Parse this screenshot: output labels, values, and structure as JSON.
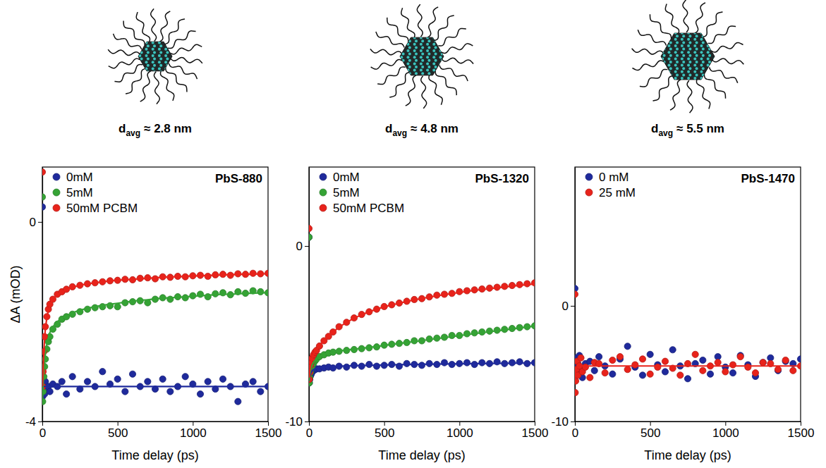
{
  "chart_data": [
    {
      "type": "scatter",
      "title": "PbS-880",
      "particle": {
        "symbol": "d",
        "subscript": "avg",
        "text": "≈ 2.8 nm"
      },
      "x_label": "Time delay (ps)",
      "y_label": "ΔA (mOD)",
      "xlim": [
        0,
        1500
      ],
      "xticks": [
        0,
        500,
        1000,
        1500
      ],
      "ylim": [
        -4,
        1.1
      ],
      "yticks": [
        -4,
        0
      ],
      "legend": "upper left",
      "marker": "circle",
      "line_style": "solid",
      "x": [
        0,
        2,
        5,
        10,
        15,
        20,
        30,
        40,
        50,
        70,
        100,
        130,
        160,
        200,
        250,
        300,
        350,
        400,
        450,
        500,
        550,
        600,
        650,
        700,
        750,
        800,
        850,
        900,
        950,
        1000,
        1050,
        1100,
        1150,
        1200,
        1250,
        1300,
        1350,
        1400,
        1450,
        1500
      ],
      "series": [
        {
          "name": "0mM",
          "color": "#1f2a9c",
          "values": [
            0.3,
            -3.5,
            -3.4,
            -3.3,
            -3.45,
            -3.2,
            -3.35,
            -3.3,
            -3.4,
            -3.25,
            -3.3,
            -3.2,
            -3.45,
            -3.1,
            -3.35,
            -3.2,
            -3.3,
            -3.0,
            -3.25,
            -3.15,
            -3.4,
            -3.05,
            -3.3,
            -3.2,
            -3.35,
            -3.15,
            -3.4,
            -3.3,
            -3.1,
            -3.25,
            -3.45,
            -3.2,
            -3.35,
            -3.15,
            -3.3,
            -3.6,
            -3.25,
            -3.2,
            -3.4,
            -3.3
          ],
          "fit": [
            -3.3,
            -3.3,
            -3.3,
            -3.3,
            -3.3,
            -3.3,
            -3.3,
            -3.3,
            -3.3,
            -3.3,
            -3.3,
            -3.3,
            -3.3,
            -3.3,
            -3.3,
            -3.3,
            -3.3,
            -3.3,
            -3.3,
            -3.3,
            -3.3,
            -3.3,
            -3.3,
            -3.3,
            -3.3,
            -3.3,
            -3.3,
            -3.3,
            -3.3,
            -3.3,
            -3.3,
            -3.3,
            -3.3,
            -3.3,
            -3.3,
            -3.3,
            -3.3,
            -3.3,
            -3.3,
            -3.3
          ]
        },
        {
          "name": "5mM",
          "color": "#35a335",
          "values": [
            0.5,
            -3.6,
            -3.4,
            -3.1,
            -2.9,
            -2.75,
            -2.55,
            -2.4,
            -2.3,
            -2.15,
            -2.05,
            -1.95,
            -1.9,
            -1.85,
            -1.8,
            -1.75,
            -1.72,
            -1.7,
            -1.68,
            -1.7,
            -1.62,
            -1.6,
            -1.58,
            -1.62,
            -1.55,
            -1.52,
            -1.55,
            -1.5,
            -1.52,
            -1.48,
            -1.45,
            -1.5,
            -1.44,
            -1.42,
            -1.46,
            -1.4,
            -1.43,
            -1.38,
            -1.4,
            -1.42
          ],
          "fit": [
            -3.6,
            -3.5,
            -3.3,
            -3.0,
            -2.8,
            -2.65,
            -2.45,
            -2.32,
            -2.22,
            -2.1,
            -2.0,
            -1.93,
            -1.88,
            -1.82,
            -1.77,
            -1.73,
            -1.7,
            -1.67,
            -1.65,
            -1.63,
            -1.61,
            -1.59,
            -1.57,
            -1.56,
            -1.54,
            -1.53,
            -1.52,
            -1.51,
            -1.5,
            -1.49,
            -1.48,
            -1.47,
            -1.46,
            -1.45,
            -1.45,
            -1.44,
            -1.43,
            -1.43,
            -1.42,
            -1.42
          ]
        },
        {
          "name": "50mM PCBM",
          "color": "#e8231b",
          "values": [
            1.0,
            -3.3,
            -3.0,
            -2.6,
            -2.3,
            -2.1,
            -1.9,
            -1.75,
            -1.65,
            -1.55,
            -1.45,
            -1.4,
            -1.35,
            -1.3,
            -1.27,
            -1.24,
            -1.22,
            -1.2,
            -1.18,
            -1.17,
            -1.15,
            -1.16,
            -1.13,
            -1.12,
            -1.14,
            -1.1,
            -1.11,
            -1.09,
            -1.1,
            -1.08,
            -1.07,
            -1.09,
            -1.06,
            -1.05,
            -1.07,
            -1.04,
            -1.05,
            -1.03,
            -1.04,
            -1.03
          ],
          "fit": [
            -3.3,
            -3.2,
            -2.95,
            -2.6,
            -2.35,
            -2.15,
            -1.92,
            -1.78,
            -1.67,
            -1.55,
            -1.46,
            -1.4,
            -1.36,
            -1.31,
            -1.27,
            -1.24,
            -1.22,
            -1.2,
            -1.18,
            -1.17,
            -1.16,
            -1.15,
            -1.14,
            -1.13,
            -1.12,
            -1.11,
            -1.1,
            -1.1,
            -1.09,
            -1.08,
            -1.08,
            -1.07,
            -1.07,
            -1.06,
            -1.06,
            -1.05,
            -1.05,
            -1.05,
            -1.04,
            -1.04
          ]
        }
      ]
    },
    {
      "type": "scatter",
      "title": "PbS-1320",
      "particle": {
        "symbol": "d",
        "subscript": "avg",
        "text": "≈ 4.8 nm"
      },
      "x_label": "Time delay (ps)",
      "xlim": [
        0,
        1500
      ],
      "xticks": [
        0,
        500,
        1000,
        1500
      ],
      "ylim": [
        -10,
        4.5
      ],
      "yticks": [
        -10,
        0
      ],
      "legend": "upper left",
      "marker": "circle",
      "line_style": "solid",
      "x": [
        0,
        2,
        5,
        10,
        15,
        20,
        30,
        40,
        50,
        70,
        100,
        130,
        160,
        200,
        250,
        300,
        350,
        400,
        450,
        500,
        550,
        600,
        650,
        700,
        750,
        800,
        850,
        900,
        950,
        1000,
        1050,
        1100,
        1150,
        1200,
        1250,
        1300,
        1350,
        1400,
        1450,
        1500
      ],
      "series": [
        {
          "name": "0mM",
          "color": "#1f2a9c",
          "values": [
            0.5,
            -7.8,
            -7.6,
            -7.4,
            -7.3,
            -7.2,
            -7.1,
            -7.05,
            -7.0,
            -7.0,
            -6.95,
            -6.9,
            -6.95,
            -6.85,
            -6.9,
            -6.8,
            -6.85,
            -6.75,
            -6.85,
            -6.8,
            -6.75,
            -6.85,
            -6.7,
            -6.75,
            -6.8,
            -6.7,
            -6.75,
            -6.65,
            -6.75,
            -6.7,
            -6.65,
            -6.75,
            -6.65,
            -6.7,
            -6.6,
            -6.7,
            -6.65,
            -6.6,
            -6.7,
            -6.65
          ],
          "fit": [
            -7.7,
            -7.6,
            -7.45,
            -7.3,
            -7.2,
            -7.12,
            -7.05,
            -7.0,
            -6.97,
            -6.93,
            -6.9,
            -6.88,
            -6.86,
            -6.85,
            -6.83,
            -6.82,
            -6.81,
            -6.8,
            -6.79,
            -6.78,
            -6.77,
            -6.76,
            -6.75,
            -6.75,
            -6.74,
            -6.73,
            -6.73,
            -6.72,
            -6.72,
            -6.71,
            -6.71,
            -6.7,
            -6.7,
            -6.69,
            -6.69,
            -6.68,
            -6.68,
            -6.67,
            -6.67,
            -6.66
          ]
        },
        {
          "name": "5mM",
          "color": "#35a335",
          "values": [
            0.5,
            -7.8,
            -7.5,
            -7.2,
            -7.0,
            -6.85,
            -6.7,
            -6.55,
            -6.45,
            -6.3,
            -6.2,
            -6.1,
            -6.05,
            -6.0,
            -5.95,
            -5.9,
            -5.85,
            -5.8,
            -5.75,
            -5.65,
            -5.6,
            -5.55,
            -5.5,
            -5.4,
            -5.4,
            -5.3,
            -5.25,
            -5.2,
            -5.1,
            -5.1,
            -5.0,
            -4.95,
            -4.9,
            -4.85,
            -4.8,
            -4.75,
            -4.7,
            -4.65,
            -4.6,
            -4.55
          ],
          "fit": [
            -7.7,
            -7.6,
            -7.35,
            -7.1,
            -6.93,
            -6.8,
            -6.63,
            -6.52,
            -6.42,
            -6.3,
            -6.18,
            -6.1,
            -6.04,
            -5.98,
            -5.93,
            -5.88,
            -5.83,
            -5.78,
            -5.73,
            -5.67,
            -5.61,
            -5.56,
            -5.5,
            -5.45,
            -5.39,
            -5.33,
            -5.28,
            -5.22,
            -5.17,
            -5.11,
            -5.05,
            -5.0,
            -4.94,
            -4.89,
            -4.83,
            -4.78,
            -4.72,
            -4.67,
            -4.61,
            -4.56
          ]
        },
        {
          "name": "50mM PCBM",
          "color": "#e8231b",
          "values": [
            1.0,
            -7.6,
            -7.2,
            -6.8,
            -6.6,
            -6.4,
            -6.2,
            -6.05,
            -5.95,
            -5.7,
            -5.4,
            -5.15,
            -4.9,
            -4.6,
            -4.35,
            -4.1,
            -3.9,
            -3.75,
            -3.6,
            -3.45,
            -3.35,
            -3.25,
            -3.15,
            -3.05,
            -3.0,
            -2.9,
            -2.8,
            -2.75,
            -2.7,
            -2.6,
            -2.55,
            -2.5,
            -2.45,
            -2.4,
            -2.35,
            -2.3,
            -2.25,
            -2.2,
            -2.15,
            -2.1
          ],
          "fit": [
            -7.5,
            -7.4,
            -7.1,
            -6.75,
            -6.55,
            -6.38,
            -6.18,
            -6.03,
            -5.92,
            -5.68,
            -5.38,
            -5.12,
            -4.9,
            -4.62,
            -4.35,
            -4.12,
            -3.92,
            -3.75,
            -3.6,
            -3.47,
            -3.36,
            -3.26,
            -3.16,
            -3.07,
            -2.99,
            -2.91,
            -2.84,
            -2.77,
            -2.71,
            -2.65,
            -2.59,
            -2.53,
            -2.48,
            -2.43,
            -2.38,
            -2.33,
            -2.28,
            -2.24,
            -2.2,
            -2.16
          ]
        }
      ]
    },
    {
      "type": "scatter",
      "title": "PbS-1470",
      "particle": {
        "symbol": "d",
        "subscript": "avg",
        "text": "≈ 5.5 nm"
      },
      "x_label": "Time delay (ps)",
      "xlim": [
        0,
        1500
      ],
      "xticks": [
        0,
        500,
        1000,
        1500
      ],
      "ylim": [
        -10,
        12
      ],
      "yticks": [
        -10,
        0
      ],
      "legend": "upper left",
      "marker": "circle",
      "line_style": "solid",
      "x": [
        0,
        2,
        5,
        10,
        15,
        20,
        30,
        40,
        50,
        70,
        100,
        130,
        160,
        200,
        250,
        300,
        350,
        400,
        450,
        500,
        550,
        600,
        650,
        700,
        750,
        800,
        850,
        900,
        950,
        1000,
        1050,
        1100,
        1150,
        1200,
        1250,
        1300,
        1350,
        1400,
        1450,
        1500
      ],
      "series": [
        {
          "name": "0 mM",
          "color": "#1f2a9c",
          "values": [
            1.5,
            -6.0,
            -5.2,
            -4.5,
            -5.8,
            -5.0,
            -4.3,
            -5.5,
            -6.2,
            -5.0,
            -4.8,
            -5.6,
            -4.4,
            -5.2,
            -5.9,
            -4.6,
            -3.5,
            -5.3,
            -6.0,
            -4.2,
            -5.1,
            -5.7,
            -3.8,
            -5.2,
            -6.3,
            -5.0,
            -4.7,
            -5.9,
            -4.4,
            -5.3,
            -5.8,
            -4.3,
            -5.1,
            -6.1,
            -4.9,
            -4.5,
            -5.6,
            -4.8,
            -5.0,
            -4.6
          ]
        },
        {
          "name": "25 mM",
          "color": "#e8231b",
          "values": [
            1.0,
            -7.5,
            -6.5,
            -5.5,
            -4.8,
            -6.0,
            -5.2,
            -4.5,
            -5.7,
            -5.3,
            -6.2,
            -4.9,
            -5.0,
            -5.8,
            -4.7,
            -4.4,
            -5.5,
            -5.1,
            -4.6,
            -5.9,
            -5.3,
            -4.8,
            -5.4,
            -6.0,
            -5.0,
            -4.2,
            -5.6,
            -5.2,
            -4.9,
            -5.7,
            -5.1,
            -4.4,
            -5.3,
            -5.8,
            -4.9,
            -5.0,
            -5.5,
            -4.7,
            -5.6,
            -5.2
          ],
          "fit": [
            -6.5,
            -6.0,
            -5.6,
            -5.4,
            -5.3,
            -5.25,
            -5.2,
            -5.2,
            -5.2,
            -5.2,
            -5.2,
            -5.2,
            -5.2,
            -5.2,
            -5.2,
            -5.2,
            -5.2,
            -5.2,
            -5.2,
            -5.2,
            -5.2,
            -5.2,
            -5.2,
            -5.2,
            -5.2,
            -5.2,
            -5.2,
            -5.2,
            -5.2,
            -5.2,
            -5.2,
            -5.2,
            -5.2,
            -5.2,
            -5.2,
            -5.2,
            -5.2,
            -5.2,
            -5.2,
            -5.2
          ]
        }
      ]
    }
  ]
}
